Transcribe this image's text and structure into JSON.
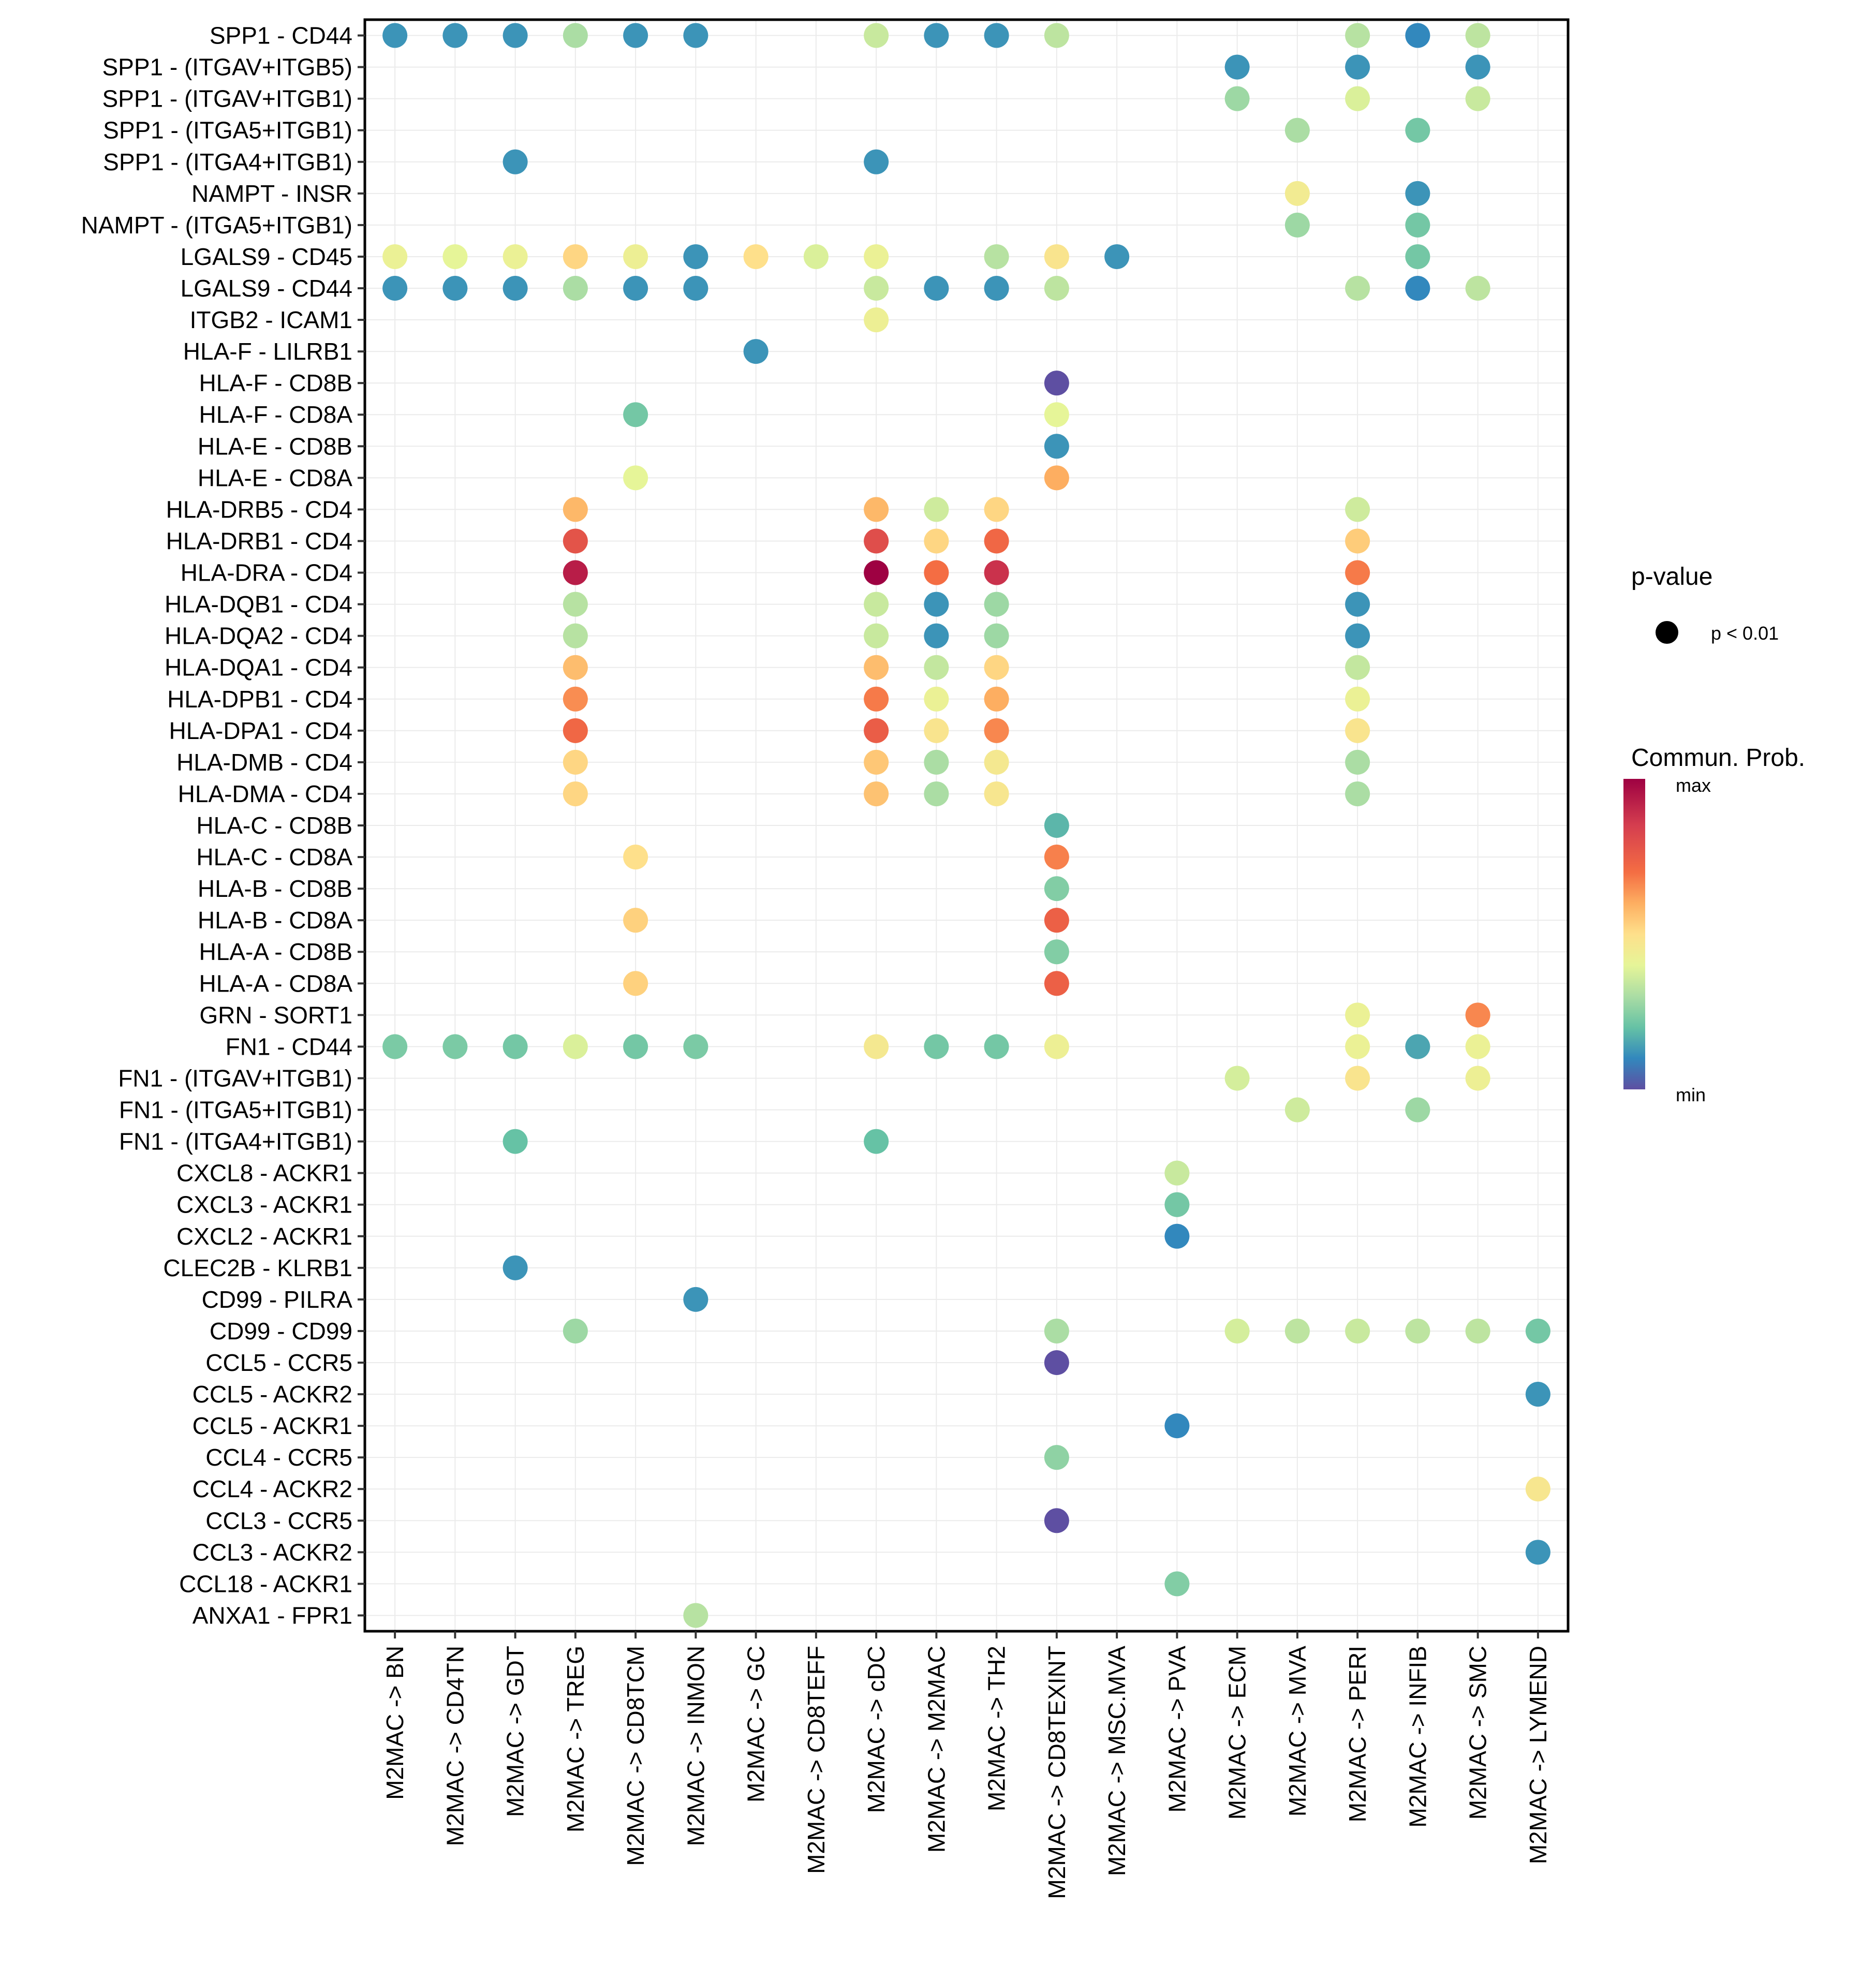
{
  "chart_data": {
    "type": "scatter",
    "subtype": "dot-matrix",
    "title": "",
    "xlabel": "",
    "ylabel": "",
    "grid": true,
    "columns": [
      "M2MAC -> BN",
      "M2MAC -> CD4TN",
      "M2MAC -> GDT",
      "M2MAC -> TREG",
      "M2MAC -> CD8TCM",
      "M2MAC -> INMON",
      "M2MAC -> GC",
      "M2MAC -> CD8TEFF",
      "M2MAC -> cDC",
      "M2MAC -> M2MAC",
      "M2MAC -> TH2",
      "M2MAC -> CD8TEXINT",
      "M2MAC -> MSC.MVA",
      "M2MAC -> PVA",
      "M2MAC -> ECM",
      "M2MAC -> MVA",
      "M2MAC -> PERI",
      "M2MAC -> INFIB",
      "M2MAC -> SMC",
      "M2MAC -> LYMEND"
    ],
    "rows": [
      "SPP1 - CD44",
      "SPP1 - (ITGAV+ITGB5)",
      "SPP1 - (ITGAV+ITGB1)",
      "SPP1 - (ITGA5+ITGB1)",
      "SPP1 - (ITGA4+ITGB1)",
      "NAMPT - INSR",
      "NAMPT - (ITGA5+ITGB1)",
      "LGALS9 - CD45",
      "LGALS9 - CD44",
      "ITGB2 - ICAM1",
      "HLA-F - LILRB1",
      "HLA-F - CD8B",
      "HLA-F - CD8A",
      "HLA-E - CD8B",
      "HLA-E - CD8A",
      "HLA-DRB5 - CD4",
      "HLA-DRB1 - CD4",
      "HLA-DRA - CD4",
      "HLA-DQB1 - CD4",
      "HLA-DQA2 - CD4",
      "HLA-DQA1 - CD4",
      "HLA-DPB1 - CD4",
      "HLA-DPA1 - CD4",
      "HLA-DMB - CD4",
      "HLA-DMA - CD4",
      "HLA-C - CD8B",
      "HLA-C - CD8A",
      "HLA-B - CD8B",
      "HLA-B - CD8A",
      "HLA-A - CD8B",
      "HLA-A - CD8A",
      "GRN - SORT1",
      "FN1 - CD44",
      "FN1 - (ITGAV+ITGB1)",
      "FN1 - (ITGA5+ITGB1)",
      "FN1 - (ITGA4+ITGB1)",
      "CXCL8 - ACKR1",
      "CXCL3 - ACKR1",
      "CXCL2 - ACKR1",
      "CLEC2B - KLRB1",
      "CD99 - PILRA",
      "CD99 - CD99",
      "CCL5 - CCR5",
      "CCL5 - ACKR2",
      "CCL5 - ACKR1",
      "CCL4 - CCR5",
      "CCL4 - ACKR2",
      "CCL3 - CCR5",
      "CCL3 - ACKR2",
      "CCL18 - ACKR1",
      "ANXA1 - FPR1"
    ],
    "value_scale": {
      "min_label": "min",
      "max_label": "max",
      "range": [
        0,
        1
      ],
      "palette": "Spectral (reversed)"
    },
    "points": [
      {
        "row": 0,
        "col": 0,
        "value": 0.12
      },
      {
        "row": 0,
        "col": 1,
        "value": 0.12
      },
      {
        "row": 0,
        "col": 2,
        "value": 0.12
      },
      {
        "row": 0,
        "col": 3,
        "value": 0.3
      },
      {
        "row": 0,
        "col": 4,
        "value": 0.12
      },
      {
        "row": 0,
        "col": 5,
        "value": 0.12
      },
      {
        "row": 0,
        "col": 8,
        "value": 0.35
      },
      {
        "row": 0,
        "col": 9,
        "value": 0.12
      },
      {
        "row": 0,
        "col": 10,
        "value": 0.12
      },
      {
        "row": 0,
        "col": 11,
        "value": 0.33
      },
      {
        "row": 0,
        "col": 16,
        "value": 0.32
      },
      {
        "row": 0,
        "col": 17,
        "value": 0.1
      },
      {
        "row": 0,
        "col": 18,
        "value": 0.33
      },
      {
        "row": 1,
        "col": 14,
        "value": 0.12
      },
      {
        "row": 1,
        "col": 16,
        "value": 0.12
      },
      {
        "row": 1,
        "col": 18,
        "value": 0.12
      },
      {
        "row": 2,
        "col": 14,
        "value": 0.28
      },
      {
        "row": 2,
        "col": 16,
        "value": 0.38
      },
      {
        "row": 2,
        "col": 18,
        "value": 0.35
      },
      {
        "row": 3,
        "col": 15,
        "value": 0.3
      },
      {
        "row": 3,
        "col": 17,
        "value": 0.22
      },
      {
        "row": 4,
        "col": 2,
        "value": 0.12
      },
      {
        "row": 4,
        "col": 8,
        "value": 0.12
      },
      {
        "row": 5,
        "col": 15,
        "value": 0.45
      },
      {
        "row": 5,
        "col": 17,
        "value": 0.12
      },
      {
        "row": 6,
        "col": 15,
        "value": 0.28
      },
      {
        "row": 6,
        "col": 17,
        "value": 0.22
      },
      {
        "row": 7,
        "col": 0,
        "value": 0.42
      },
      {
        "row": 7,
        "col": 1,
        "value": 0.4
      },
      {
        "row": 7,
        "col": 2,
        "value": 0.42
      },
      {
        "row": 7,
        "col": 3,
        "value": 0.52
      },
      {
        "row": 7,
        "col": 4,
        "value": 0.43
      },
      {
        "row": 7,
        "col": 5,
        "value": 0.12
      },
      {
        "row": 7,
        "col": 6,
        "value": 0.5
      },
      {
        "row": 7,
        "col": 7,
        "value": 0.38
      },
      {
        "row": 7,
        "col": 8,
        "value": 0.42
      },
      {
        "row": 7,
        "col": 10,
        "value": 0.32
      },
      {
        "row": 7,
        "col": 11,
        "value": 0.48
      },
      {
        "row": 7,
        "col": 12,
        "value": 0.12
      },
      {
        "row": 7,
        "col": 17,
        "value": 0.22
      },
      {
        "row": 8,
        "col": 0,
        "value": 0.12
      },
      {
        "row": 8,
        "col": 1,
        "value": 0.12
      },
      {
        "row": 8,
        "col": 2,
        "value": 0.12
      },
      {
        "row": 8,
        "col": 3,
        "value": 0.3
      },
      {
        "row": 8,
        "col": 4,
        "value": 0.12
      },
      {
        "row": 8,
        "col": 5,
        "value": 0.12
      },
      {
        "row": 8,
        "col": 8,
        "value": 0.35
      },
      {
        "row": 8,
        "col": 9,
        "value": 0.12
      },
      {
        "row": 8,
        "col": 10,
        "value": 0.12
      },
      {
        "row": 8,
        "col": 11,
        "value": 0.33
      },
      {
        "row": 8,
        "col": 16,
        "value": 0.32
      },
      {
        "row": 8,
        "col": 17,
        "value": 0.1
      },
      {
        "row": 8,
        "col": 18,
        "value": 0.33
      },
      {
        "row": 9,
        "col": 8,
        "value": 0.43
      },
      {
        "row": 10,
        "col": 6,
        "value": 0.12
      },
      {
        "row": 11,
        "col": 11,
        "value": 0.0
      },
      {
        "row": 12,
        "col": 4,
        "value": 0.22
      },
      {
        "row": 12,
        "col": 11,
        "value": 0.4
      },
      {
        "row": 13,
        "col": 11,
        "value": 0.12
      },
      {
        "row": 14,
        "col": 4,
        "value": 0.4
      },
      {
        "row": 14,
        "col": 11,
        "value": 0.6
      },
      {
        "row": 15,
        "col": 3,
        "value": 0.58
      },
      {
        "row": 15,
        "col": 8,
        "value": 0.58
      },
      {
        "row": 15,
        "col": 9,
        "value": 0.36
      },
      {
        "row": 15,
        "col": 10,
        "value": 0.52
      },
      {
        "row": 15,
        "col": 16,
        "value": 0.36
      },
      {
        "row": 16,
        "col": 3,
        "value": 0.78
      },
      {
        "row": 16,
        "col": 8,
        "value": 0.8
      },
      {
        "row": 16,
        "col": 9,
        "value": 0.52
      },
      {
        "row": 16,
        "col": 10,
        "value": 0.72
      },
      {
        "row": 16,
        "col": 16,
        "value": 0.54
      },
      {
        "row": 17,
        "col": 3,
        "value": 0.93
      },
      {
        "row": 17,
        "col": 8,
        "value": 1.0
      },
      {
        "row": 17,
        "col": 9,
        "value": 0.7
      },
      {
        "row": 17,
        "col": 10,
        "value": 0.88
      },
      {
        "row": 17,
        "col": 16,
        "value": 0.68
      },
      {
        "row": 18,
        "col": 3,
        "value": 0.32
      },
      {
        "row": 18,
        "col": 8,
        "value": 0.35
      },
      {
        "row": 18,
        "col": 9,
        "value": 0.12
      },
      {
        "row": 18,
        "col": 10,
        "value": 0.28
      },
      {
        "row": 18,
        "col": 16,
        "value": 0.12
      },
      {
        "row": 19,
        "col": 3,
        "value": 0.32
      },
      {
        "row": 19,
        "col": 8,
        "value": 0.35
      },
      {
        "row": 19,
        "col": 9,
        "value": 0.12
      },
      {
        "row": 19,
        "col": 10,
        "value": 0.28
      },
      {
        "row": 19,
        "col": 16,
        "value": 0.12
      },
      {
        "row": 20,
        "col": 3,
        "value": 0.57
      },
      {
        "row": 20,
        "col": 8,
        "value": 0.57
      },
      {
        "row": 20,
        "col": 9,
        "value": 0.34
      },
      {
        "row": 20,
        "col": 10,
        "value": 0.52
      },
      {
        "row": 20,
        "col": 16,
        "value": 0.34
      },
      {
        "row": 21,
        "col": 3,
        "value": 0.65
      },
      {
        "row": 21,
        "col": 8,
        "value": 0.68
      },
      {
        "row": 21,
        "col": 9,
        "value": 0.42
      },
      {
        "row": 21,
        "col": 10,
        "value": 0.6
      },
      {
        "row": 21,
        "col": 16,
        "value": 0.42
      },
      {
        "row": 22,
        "col": 3,
        "value": 0.72
      },
      {
        "row": 22,
        "col": 8,
        "value": 0.75
      },
      {
        "row": 22,
        "col": 9,
        "value": 0.48
      },
      {
        "row": 22,
        "col": 10,
        "value": 0.66
      },
      {
        "row": 22,
        "col": 16,
        "value": 0.48
      },
      {
        "row": 23,
        "col": 3,
        "value": 0.52
      },
      {
        "row": 23,
        "col": 8,
        "value": 0.55
      },
      {
        "row": 23,
        "col": 9,
        "value": 0.3
      },
      {
        "row": 23,
        "col": 10,
        "value": 0.46
      },
      {
        "row": 23,
        "col": 16,
        "value": 0.3
      },
      {
        "row": 24,
        "col": 3,
        "value": 0.52
      },
      {
        "row": 24,
        "col": 8,
        "value": 0.56
      },
      {
        "row": 24,
        "col": 9,
        "value": 0.3
      },
      {
        "row": 24,
        "col": 10,
        "value": 0.47
      },
      {
        "row": 24,
        "col": 16,
        "value": 0.3
      },
      {
        "row": 25,
        "col": 11,
        "value": 0.18
      },
      {
        "row": 26,
        "col": 4,
        "value": 0.5
      },
      {
        "row": 26,
        "col": 11,
        "value": 0.67
      },
      {
        "row": 27,
        "col": 11,
        "value": 0.24
      },
      {
        "row": 28,
        "col": 4,
        "value": 0.53
      },
      {
        "row": 28,
        "col": 11,
        "value": 0.74
      },
      {
        "row": 29,
        "col": 11,
        "value": 0.24
      },
      {
        "row": 30,
        "col": 4,
        "value": 0.53
      },
      {
        "row": 30,
        "col": 11,
        "value": 0.74
      },
      {
        "row": 31,
        "col": 16,
        "value": 0.42
      },
      {
        "row": 31,
        "col": 18,
        "value": 0.66
      },
      {
        "row": 32,
        "col": 0,
        "value": 0.23
      },
      {
        "row": 32,
        "col": 1,
        "value": 0.23
      },
      {
        "row": 32,
        "col": 2,
        "value": 0.22
      },
      {
        "row": 32,
        "col": 3,
        "value": 0.38
      },
      {
        "row": 32,
        "col": 4,
        "value": 0.22
      },
      {
        "row": 32,
        "col": 5,
        "value": 0.23
      },
      {
        "row": 32,
        "col": 8,
        "value": 0.46
      },
      {
        "row": 32,
        "col": 9,
        "value": 0.22
      },
      {
        "row": 32,
        "col": 10,
        "value": 0.22
      },
      {
        "row": 32,
        "col": 11,
        "value": 0.43
      },
      {
        "row": 32,
        "col": 16,
        "value": 0.42
      },
      {
        "row": 32,
        "col": 17,
        "value": 0.15
      },
      {
        "row": 32,
        "col": 18,
        "value": 0.42
      },
      {
        "row": 33,
        "col": 14,
        "value": 0.37
      },
      {
        "row": 33,
        "col": 16,
        "value": 0.48
      },
      {
        "row": 33,
        "col": 18,
        "value": 0.43
      },
      {
        "row": 34,
        "col": 15,
        "value": 0.36
      },
      {
        "row": 34,
        "col": 17,
        "value": 0.28
      },
      {
        "row": 35,
        "col": 2,
        "value": 0.2
      },
      {
        "row": 35,
        "col": 8,
        "value": 0.2
      },
      {
        "row": 36,
        "col": 13,
        "value": 0.35
      },
      {
        "row": 37,
        "col": 13,
        "value": 0.22
      },
      {
        "row": 38,
        "col": 13,
        "value": 0.1
      },
      {
        "row": 39,
        "col": 2,
        "value": 0.12
      },
      {
        "row": 40,
        "col": 5,
        "value": 0.12
      },
      {
        "row": 41,
        "col": 3,
        "value": 0.28
      },
      {
        "row": 41,
        "col": 11,
        "value": 0.3
      },
      {
        "row": 41,
        "col": 14,
        "value": 0.37
      },
      {
        "row": 41,
        "col": 15,
        "value": 0.33
      },
      {
        "row": 41,
        "col": 16,
        "value": 0.35
      },
      {
        "row": 41,
        "col": 17,
        "value": 0.33
      },
      {
        "row": 41,
        "col": 18,
        "value": 0.33
      },
      {
        "row": 41,
        "col": 19,
        "value": 0.22
      },
      {
        "row": 42,
        "col": 11,
        "value": 0.0
      },
      {
        "row": 43,
        "col": 19,
        "value": 0.12
      },
      {
        "row": 44,
        "col": 13,
        "value": 0.1
      },
      {
        "row": 45,
        "col": 11,
        "value": 0.26
      },
      {
        "row": 46,
        "col": 19,
        "value": 0.47
      },
      {
        "row": 47,
        "col": 11,
        "value": 0.0
      },
      {
        "row": 48,
        "col": 19,
        "value": 0.12
      },
      {
        "row": 49,
        "col": 13,
        "value": 0.24
      },
      {
        "row": 50,
        "col": 5,
        "value": 0.32
      }
    ],
    "legend": {
      "placement": "right",
      "pvalue_title": "p-value",
      "pvalue_entry": "p < 0.01",
      "color_title": "Commun. Prob.",
      "color_max": "max",
      "color_min": "min"
    }
  }
}
